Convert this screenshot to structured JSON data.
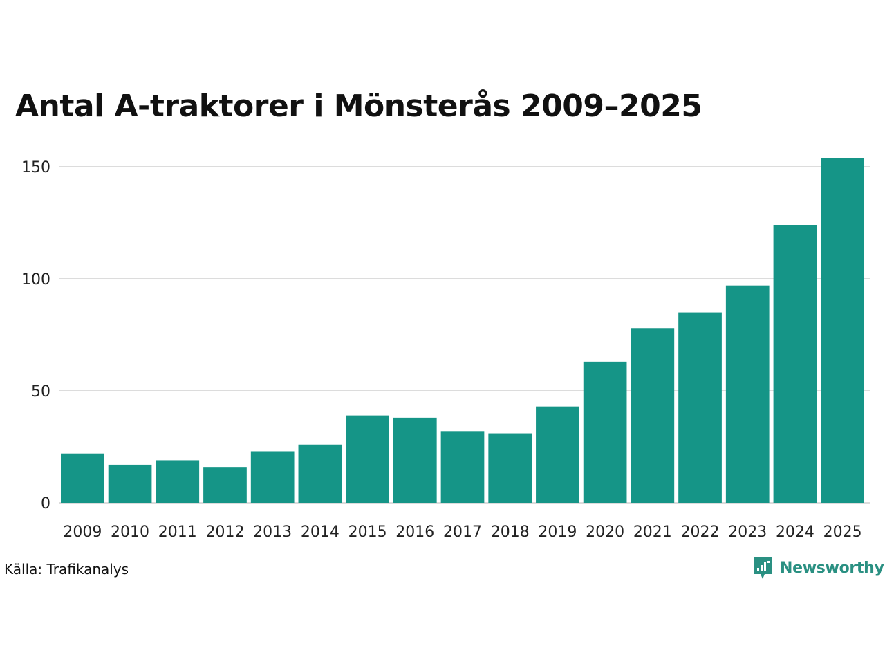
{
  "title": "Antal A-traktorer i Mönsterås 2009–2025",
  "source": "Källa: Trafikanalys",
  "brand": {
    "name": "Newsworthy",
    "icon": "newsworthy-logo-icon",
    "color": "#2a9082"
  },
  "chart_data": {
    "type": "bar",
    "title": "Antal A-traktorer i Mönsterås 2009–2025",
    "xlabel": "",
    "ylabel": "",
    "categories": [
      "2009",
      "2010",
      "2011",
      "2012",
      "2013",
      "2014",
      "2015",
      "2016",
      "2017",
      "2018",
      "2019",
      "2020",
      "2021",
      "2022",
      "2023",
      "2024",
      "2025"
    ],
    "values": [
      22,
      17,
      19,
      16,
      23,
      26,
      39,
      38,
      32,
      31,
      43,
      63,
      78,
      85,
      97,
      124,
      154
    ],
    "ylim": [
      0,
      154
    ],
    "yticks": [
      0,
      50,
      100,
      150
    ],
    "grid": true,
    "bar_color": "#159587",
    "grid_color": "#dcdcdc"
  }
}
